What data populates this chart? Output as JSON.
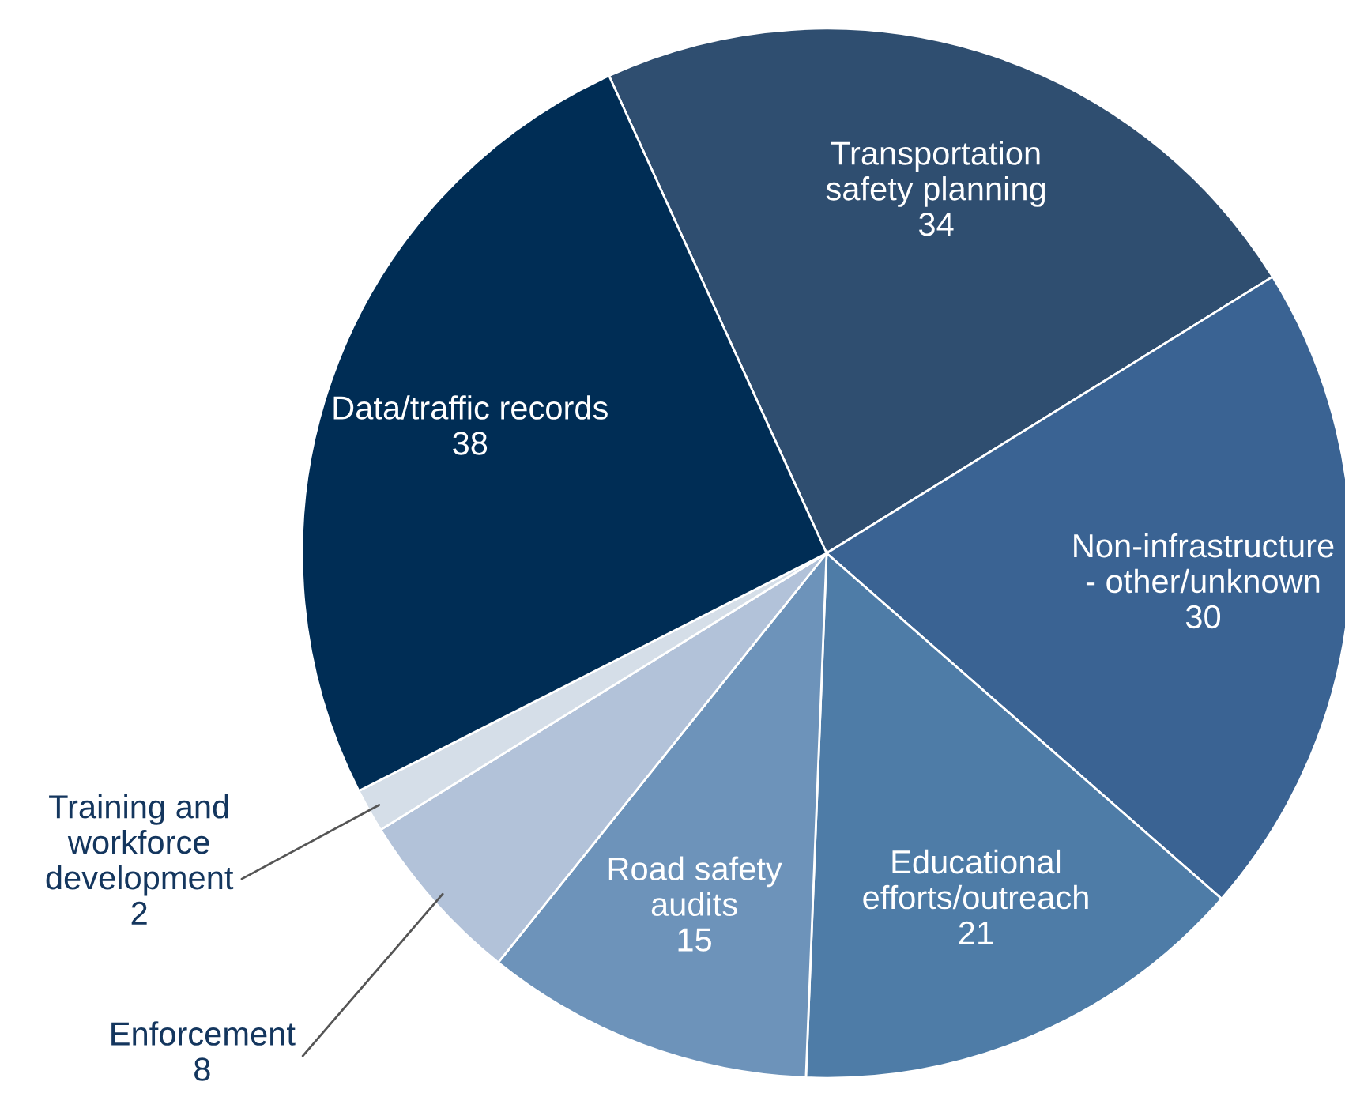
{
  "chart_data": {
    "type": "pie",
    "categories": [
      "Transportation\nsafety planning",
      "Non-infrastructure\n- other/unknown",
      "Educational\nefforts/outreach",
      "Road safety\naudits",
      "Enforcement",
      "Training and\nworkforce\ndevelopment",
      "Data/traffic records"
    ],
    "values": [
      34,
      30,
      21,
      15,
      8,
      2,
      38
    ],
    "colors": [
      "#2f4e70",
      "#3a6393",
      "#4e7ca7",
      "#6d93ba",
      "#b2c2d9",
      "#d5dee8",
      "#002d55"
    ],
    "data_labels": true,
    "legend": false
  }
}
